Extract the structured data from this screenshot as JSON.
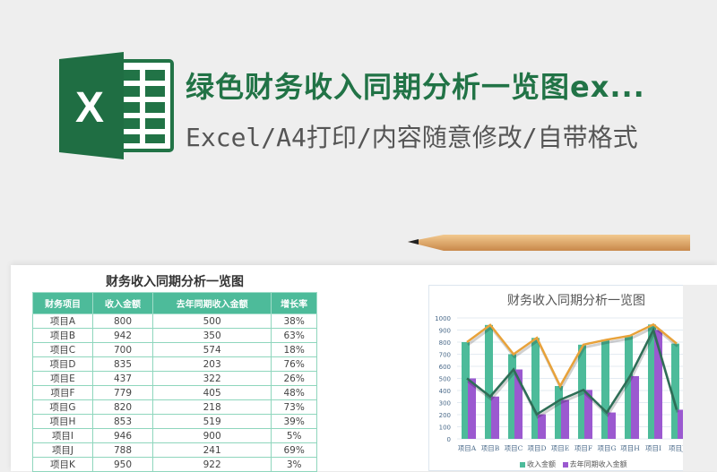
{
  "header": {
    "title": "绿色财务收入同期分析一览图ex...",
    "subtitle": "Excel/A4打印/内容随意修改/自带格式",
    "logo_letter": "X"
  },
  "table": {
    "title": "财务收入同期分析一览图",
    "columns": [
      "财务项目",
      "收入金额",
      "去年同期收入金额",
      "增长率"
    ],
    "rows": [
      [
        "项目A",
        "800",
        "500",
        "38%"
      ],
      [
        "项目B",
        "942",
        "350",
        "63%"
      ],
      [
        "项目C",
        "700",
        "574",
        "18%"
      ],
      [
        "项目D",
        "835",
        "203",
        "76%"
      ],
      [
        "项目E",
        "437",
        "322",
        "26%"
      ],
      [
        "项目F",
        "779",
        "405",
        "48%"
      ],
      [
        "项目G",
        "820",
        "218",
        "73%"
      ],
      [
        "项目H",
        "853",
        "519",
        "39%"
      ],
      [
        "项目I",
        "946",
        "900",
        "5%"
      ],
      [
        "项目J",
        "788",
        "241",
        "69%"
      ],
      [
        "项目K",
        "950",
        "922",
        "3%"
      ]
    ]
  },
  "chart_data": {
    "type": "bar",
    "title": "财务收入同期分析一览图",
    "categories": [
      "项目A",
      "项目B",
      "项目C",
      "项目D",
      "项目E",
      "项目F",
      "项目G",
      "项目H",
      "项目I",
      "项目J"
    ],
    "series": [
      {
        "name": "收入金额",
        "values": [
          800,
          942,
          700,
          835,
          437,
          779,
          820,
          853,
          946,
          788
        ],
        "color": "#4dbb9a",
        "line_color": "#e8a23a"
      },
      {
        "name": "去年同期收入金额",
        "values": [
          500,
          350,
          574,
          203,
          322,
          405,
          218,
          519,
          900,
          241
        ],
        "color": "#9b59d0",
        "line_color": "#2e6e56"
      }
    ],
    "yticks": [
      0,
      100,
      200,
      300,
      400,
      500,
      600,
      700,
      800,
      900,
      1000
    ],
    "ylim": [
      0,
      1000
    ],
    "grid": true,
    "legend": "bottom"
  }
}
